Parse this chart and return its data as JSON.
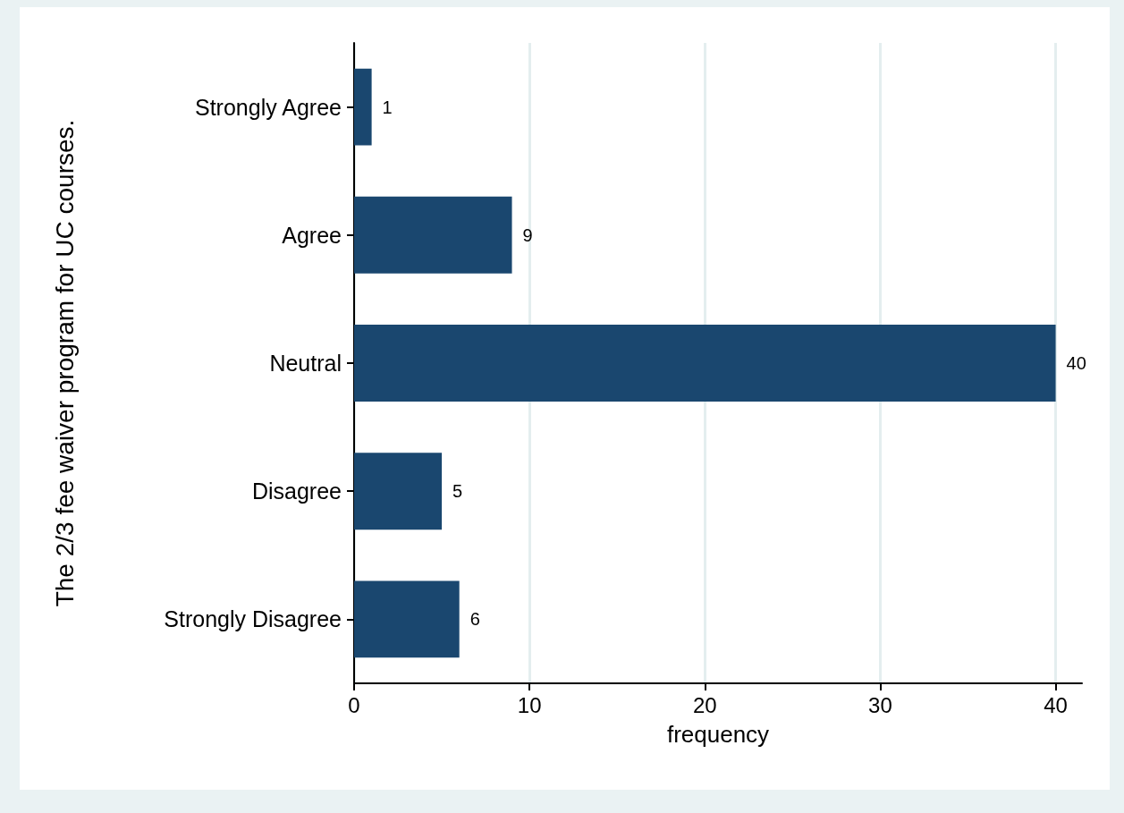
{
  "chart_data": {
    "type": "bar",
    "orientation": "horizontal",
    "ylabel": "The 2/3 fee waiver program for UC courses.",
    "xlabel": "frequency",
    "categories": [
      "Strongly Agree",
      "Agree",
      "Neutral",
      "Disagree",
      "Strongly Disagree"
    ],
    "values": [
      1,
      9,
      40,
      5,
      6
    ],
    "color": "#1a476f",
    "xlim": [
      0,
      41.5
    ],
    "xticks": [
      0,
      10,
      20,
      30,
      40
    ],
    "grid": "x",
    "data_labels": true
  }
}
